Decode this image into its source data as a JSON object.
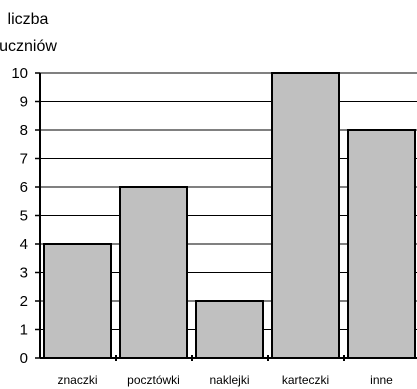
{
  "chart_data": {
    "type": "bar",
    "title": "",
    "ylabel_lines": [
      "liczba",
      "uczniów"
    ],
    "xlabel": "",
    "categories": [
      "znaczki",
      "pocztówki",
      "naklejki",
      "karteczki",
      "inne"
    ],
    "values": [
      4,
      6,
      2,
      10,
      8
    ],
    "ylim": [
      0,
      10
    ],
    "yticks": [
      "0",
      "1",
      "2",
      "3",
      "4",
      "5",
      "6",
      "7",
      "8",
      "9",
      "10"
    ],
    "grid": true,
    "legend": "none",
    "colors": {
      "bar_fill": "#c0c0c0",
      "bar_stroke": "#000000",
      "grid": "#000000",
      "axis": "#000000"
    }
  }
}
